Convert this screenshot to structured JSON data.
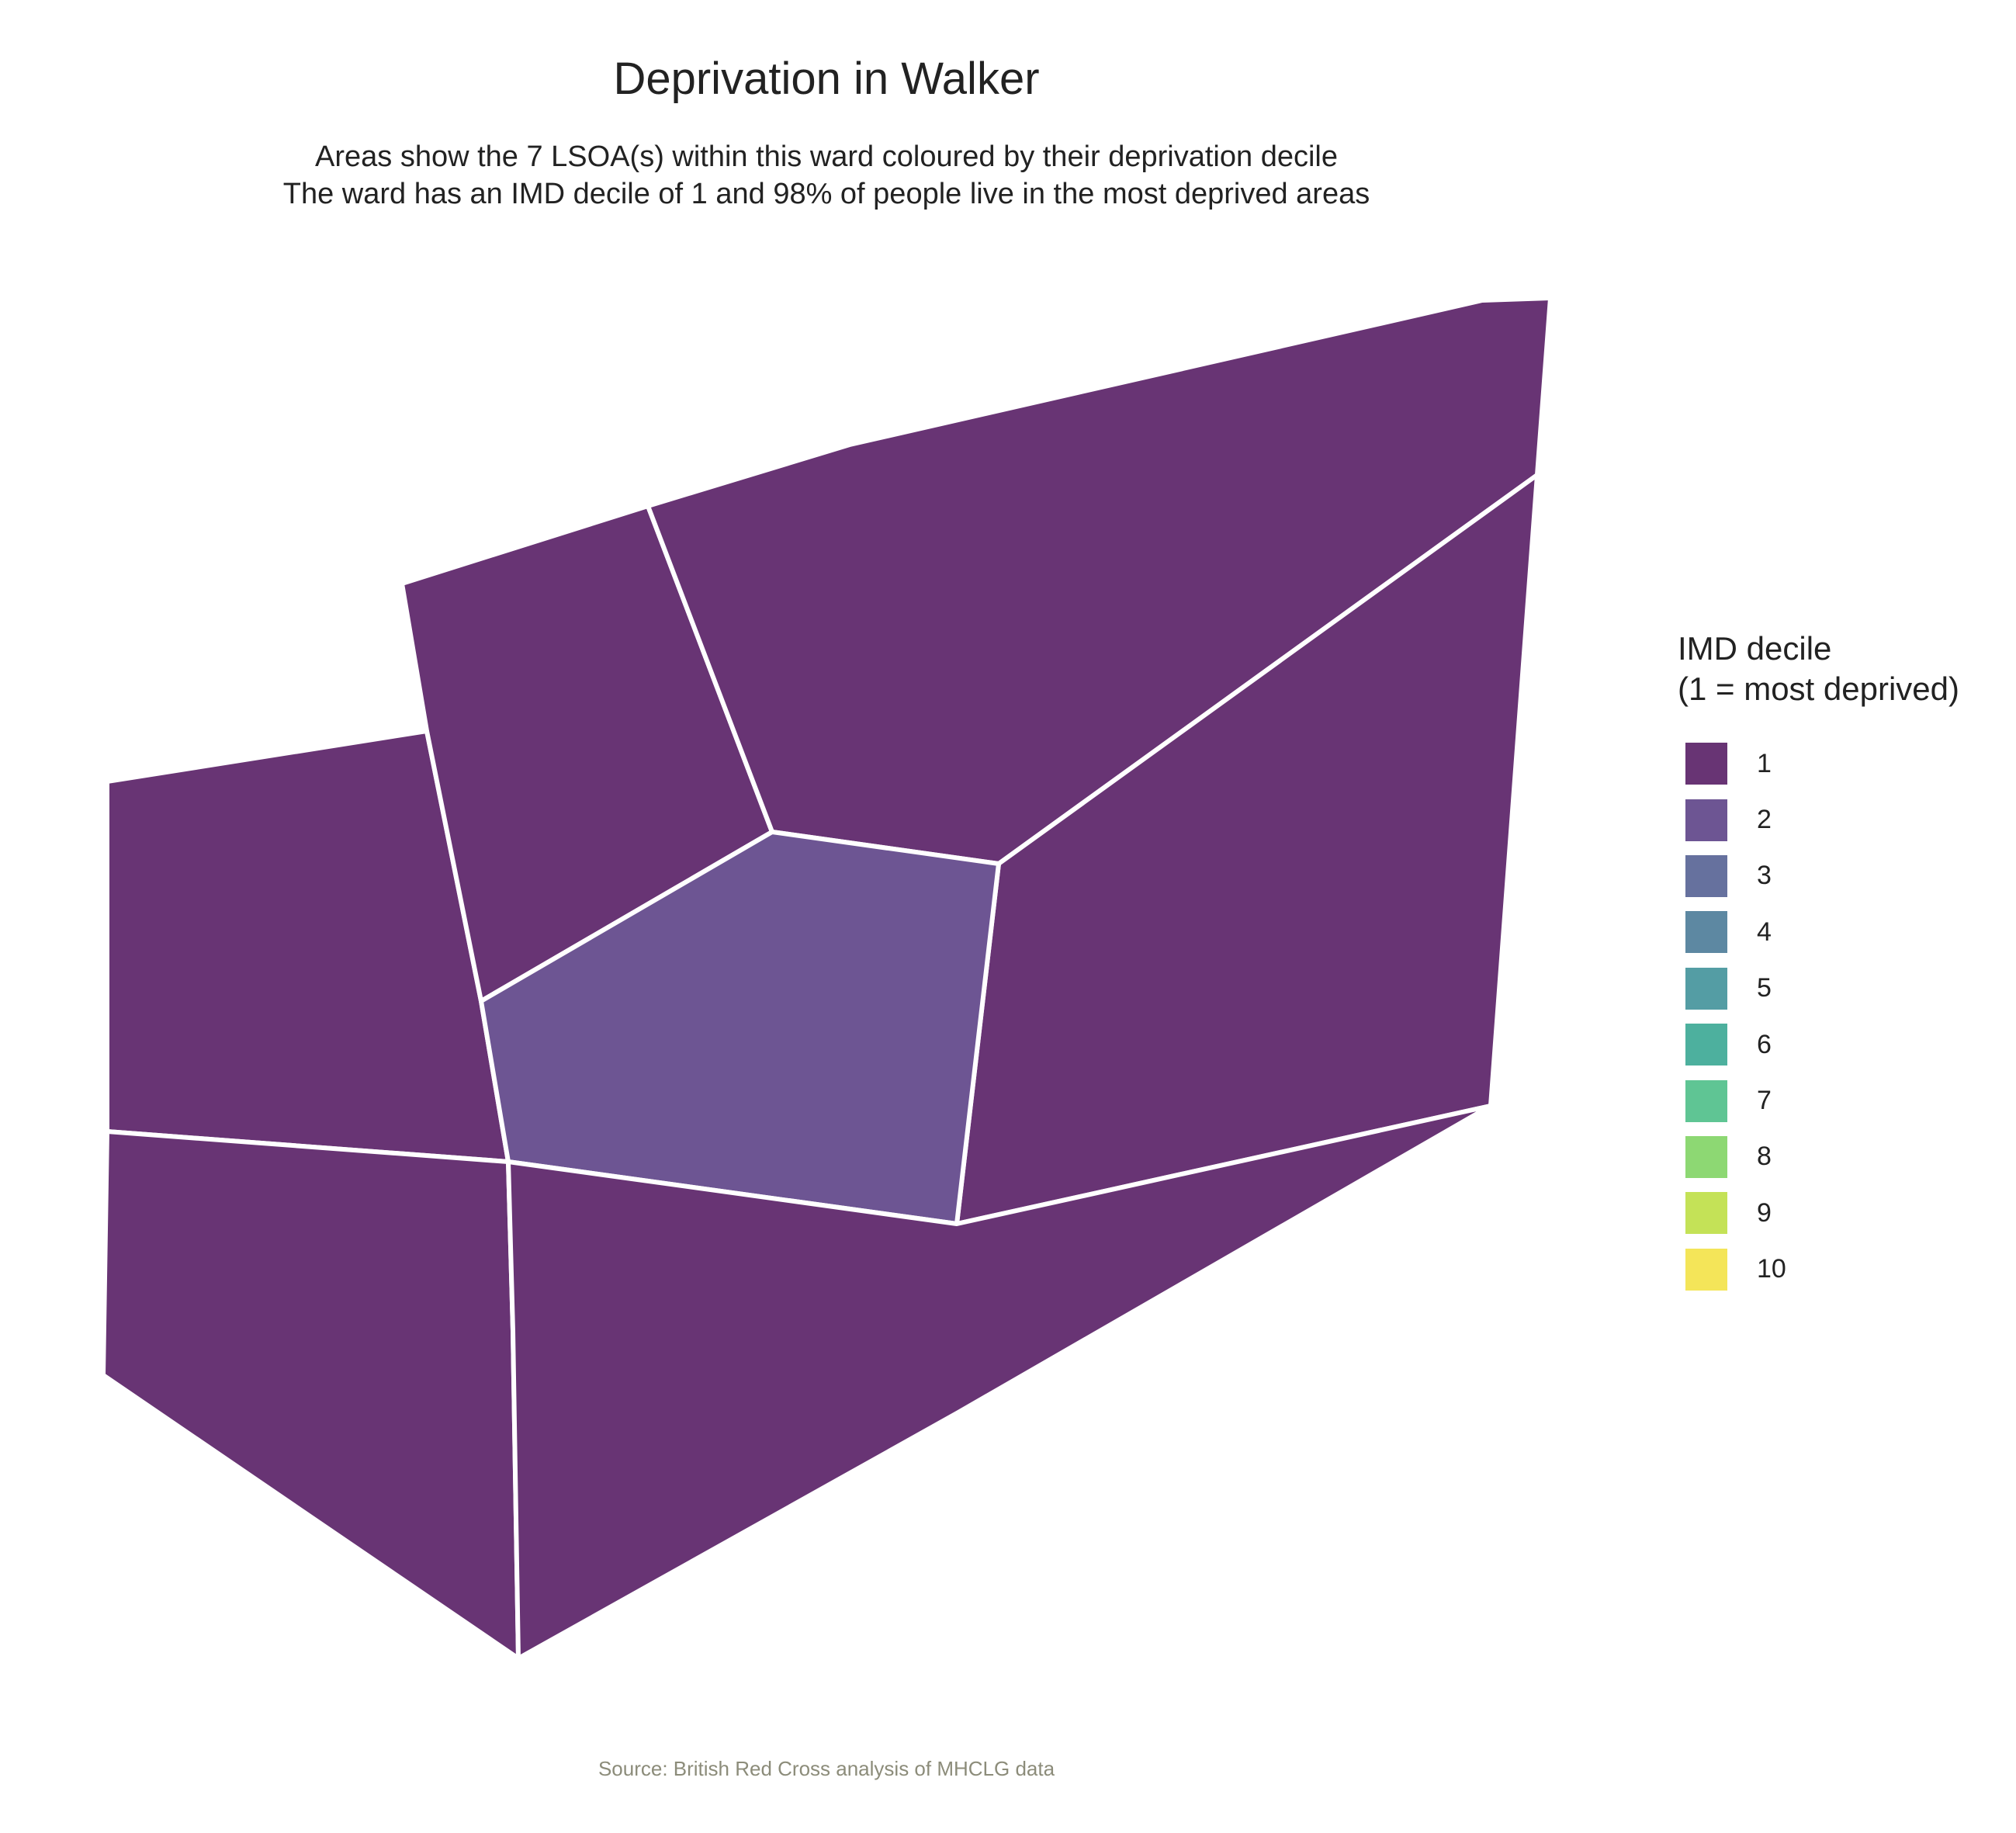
{
  "title": "Deprivation in Walker",
  "subtitle_line1": "Areas show the 7 LSOA(s) within this ward coloured by their deprivation decile",
  "subtitle_line2": "The ward has an IMD decile of 1 and 98% of people live in the most deprived areas",
  "caption": "Source: British Red Cross analysis of MHCLG data",
  "legend": {
    "title_line1": "IMD decile",
    "title_line2": "(1 = most deprived)",
    "items": [
      {
        "label": "1",
        "color": "#683474"
      },
      {
        "label": "2",
        "color": "#6D5593"
      },
      {
        "label": "3",
        "color": "#66719E"
      },
      {
        "label": "4",
        "color": "#5D88A2"
      },
      {
        "label": "5",
        "color": "#549DA4"
      },
      {
        "label": "6",
        "color": "#4DB09E"
      },
      {
        "label": "7",
        "color": "#5FC594"
      },
      {
        "label": "8",
        "color": "#8DD873"
      },
      {
        "label": "9",
        "color": "#C4E257"
      },
      {
        "label": "10",
        "color": "#F4E559"
      }
    ]
  },
  "map": {
    "border_color": "#ffffff",
    "areas": [
      {
        "name": "lsoa-west-upper",
        "decile": 1,
        "color": "#683474"
      },
      {
        "name": "lsoa-west-lower",
        "decile": 1,
        "color": "#683474"
      },
      {
        "name": "lsoa-north-west",
        "decile": 1,
        "color": "#683474"
      },
      {
        "name": "lsoa-north",
        "decile": 1,
        "color": "#683474"
      },
      {
        "name": "lsoa-east",
        "decile": 1,
        "color": "#683474"
      },
      {
        "name": "lsoa-centre",
        "decile": 2,
        "color": "#6D5593"
      },
      {
        "name": "lsoa-south",
        "decile": 1,
        "color": "#683474"
      }
    ]
  }
}
